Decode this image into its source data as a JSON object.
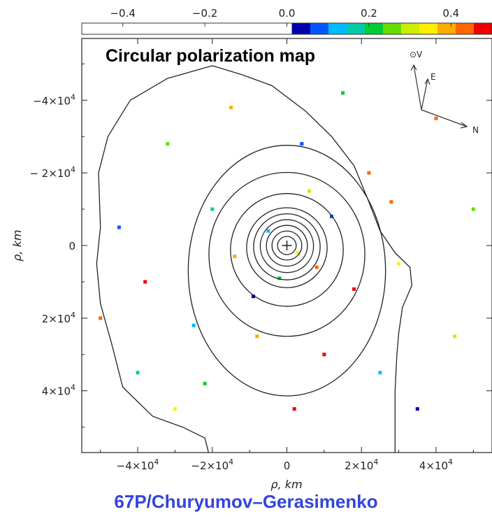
{
  "chart_data": {
    "type": "heatmap",
    "title": "Circular polarization map",
    "xlabel": "ρ, km",
    "ylabel": "ρ, km",
    "xlim": [
      -55000,
      55000
    ],
    "ylim": [
      -57000,
      57000
    ],
    "x_ticks": [
      {
        "value": -40000,
        "label_base": "−4×10",
        "label_exp": "4"
      },
      {
        "value": -20000,
        "label_base": "−2×10",
        "label_exp": "4"
      },
      {
        "value": 0,
        "label_base": "0",
        "label_exp": ""
      },
      {
        "value": 20000,
        "label_base": "2×10",
        "label_exp": "4"
      },
      {
        "value": 40000,
        "label_base": "4×10",
        "label_exp": "4"
      }
    ],
    "y_ticks": [
      {
        "value": -40000,
        "label_base": "−4×10",
        "label_exp": "4"
      },
      {
        "value": -20000,
        "label_base": "− 2×10",
        "label_exp": "4"
      },
      {
        "value": 0,
        "label_base": "0",
        "label_exp": ""
      },
      {
        "value": 20000,
        "label_base": "2×10",
        "label_exp": "4"
      },
      {
        "value": 40000,
        "label_base": "4×10",
        "label_exp": "4"
      }
    ],
    "colorbar": {
      "range": [
        -0.5,
        0.5
      ],
      "ticks": [
        {
          "value": -0.4,
          "label": "−0.4"
        },
        {
          "value": -0.2,
          "label": "−0.2"
        },
        {
          "value": 0.0,
          "label": "0.0"
        },
        {
          "value": 0.2,
          "label": "0.2"
        },
        {
          "value": 0.4,
          "label": "0.4"
        }
      ],
      "negative_color": "#ffffff",
      "positive_stops": [
        "#0000aa",
        "#0055ff",
        "#00bbff",
        "#00ccaa",
        "#00cc33",
        "#66dd00",
        "#ccee00",
        "#ffee00",
        "#ffaa00",
        "#ff6600",
        "#ee0000"
      ]
    },
    "contours_km": [
      {
        "r": 2500,
        "ax": 1.0,
        "ay": 1.0
      },
      {
        "r": 4000,
        "ax": 1.0,
        "ay": 1.0
      },
      {
        "r": 5500,
        "ax": 1.0,
        "ay": 1.02
      },
      {
        "r": 7000,
        "ax": 1.02,
        "ay": 1.04
      },
      {
        "r": 8500,
        "ax": 1.05,
        "ay": 1.07
      },
      {
        "r": 10000,
        "ax": 1.08,
        "ay": 1.1
      },
      {
        "r": 13500,
        "ax": 1.12,
        "ay": 1.15
      },
      {
        "r": 18500,
        "ax": 1.13,
        "ay": 1.22
      },
      {
        "r": 23000,
        "ax": 1.15,
        "ay": 1.5
      }
    ],
    "outer_contour_km": [
      [
        -21000,
        57000
      ],
      [
        -22000,
        53000
      ],
      [
        -28000,
        50000
      ],
      [
        -36000,
        47000
      ],
      [
        -44000,
        39000
      ],
      [
        -47000,
        27000
      ],
      [
        -50000,
        16000
      ],
      [
        -51000,
        5000
      ],
      [
        -50000,
        -5000
      ],
      [
        -50500,
        -20000
      ],
      [
        -48000,
        -30000
      ],
      [
        -42000,
        -40000
      ],
      [
        -32000,
        -46000
      ],
      [
        -20000,
        -49500
      ],
      [
        -12000,
        -47000
      ],
      [
        -4000,
        -44000
      ],
      [
        5000,
        -37000
      ],
      [
        12000,
        -30000
      ],
      [
        18000,
        -22000
      ],
      [
        22000,
        -12000
      ],
      [
        25000,
        -4000
      ],
      [
        29000,
        2000
      ],
      [
        33000,
        6000
      ],
      [
        33500,
        11000
      ],
      [
        31000,
        17000
      ],
      [
        30000,
        24000
      ],
      [
        29500,
        30000
      ],
      [
        29000,
        40000
      ],
      [
        29000,
        50000
      ],
      [
        29000,
        57000
      ]
    ],
    "nucleus_marker": {
      "x": 0,
      "y": 0,
      "symbol": "+"
    },
    "points": [
      [
        3000,
        2000,
        0.35
      ],
      [
        -5000,
        -4000,
        0.12
      ],
      [
        8000,
        6000,
        0.45
      ],
      [
        -2000,
        9000,
        0.22
      ],
      [
        12000,
        -8000,
        0.08
      ],
      [
        -14000,
        3000,
        0.4
      ],
      [
        6000,
        -15000,
        0.28
      ],
      [
        -9000,
        14000,
        0.03
      ],
      [
        18000,
        12000,
        0.48
      ],
      [
        -20000,
        -10000,
        0.18
      ],
      [
        22000,
        -20000,
        0.42
      ],
      [
        -25000,
        22000,
        0.1
      ],
      [
        30000,
        5000,
        0.36
      ],
      [
        -32000,
        -28000,
        0.25
      ],
      [
        10000,
        30000,
        0.47
      ],
      [
        -40000,
        35000,
        0.15
      ],
      [
        40000,
        -35000,
        0.44
      ],
      [
        -45000,
        -5000,
        0.05
      ],
      [
        45000,
        25000,
        0.3
      ],
      [
        -15000,
        -38000,
        0.38
      ],
      [
        15000,
        -42000,
        0.2
      ],
      [
        2000,
        45000,
        0.46
      ],
      [
        -30000,
        45000,
        0.33
      ],
      [
        35000,
        45000,
        0.02
      ],
      [
        -50000,
        20000,
        0.41
      ],
      [
        50000,
        -10000,
        0.27
      ],
      [
        -38000,
        10000,
        0.49
      ],
      [
        25000,
        35000,
        0.13
      ],
      [
        -8000,
        25000,
        0.37
      ],
      [
        4000,
        -28000,
        0.06
      ],
      [
        28000,
        -12000,
        0.43
      ],
      [
        -22000,
        38000,
        0.21
      ]
    ]
  },
  "compass": {
    "labels": [
      "⊙V",
      "E",
      "N"
    ]
  },
  "footer": {
    "text": "67P/Churyumov–Gerasimenko"
  }
}
